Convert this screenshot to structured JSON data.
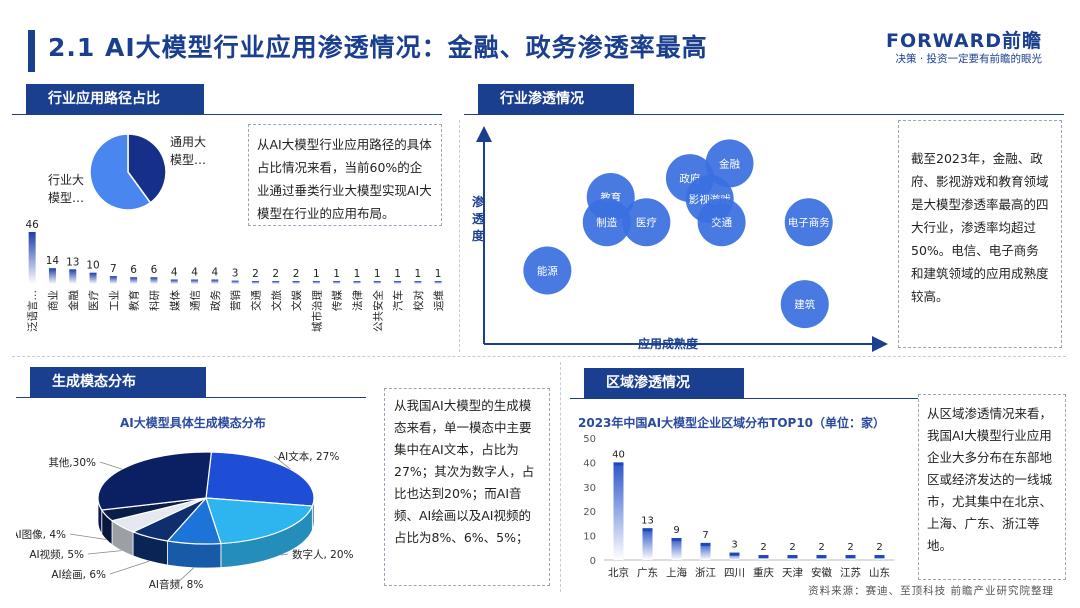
{
  "header": {
    "title": "2.1 AI大模型行业应用渗透情况：金融、政务渗透率最高",
    "logo": "FORWARD前瞻",
    "tagline": "决策 · 投资一定要有前瞻的眼光"
  },
  "sections": {
    "path_share": "行业应用路径占比",
    "penetration": "行业渗透情况",
    "modality": "生成模态分布",
    "region": "区域渗透情况"
  },
  "notes": {
    "path_share": "从AI大模型行业应用路径的具体占比情况来看，当前60%的企业通过垂类行业大模型实现AI大模型在行业的应用布局。",
    "penetration": "截至2023年，金融、政府、影视游戏和教育领域是大模型渗透率最高的四大行业，渗透率均超过50%。电信、电子商务和建筑领域的应用成熟度较高。",
    "modality": "从我国AI大模型的生成模态来看，单一模态中主要集中在AI文本，占比为27%；其次为数字人，占比也达到20%；而AI音频、AI绘画以及AI视频的占比为8%、6%、5%；",
    "region": "从区域渗透情况来看，我国AI大模型行业应用企业大多分布在东部地区或经济发达的一线城市，尤其集中在北京、上海、广东、浙江等地。"
  },
  "source": "资料来源：赛迪、至顶科技 前瞻产业研究院整理",
  "colors": {
    "primary": "#1b3f8f",
    "bubble": "#3a6fe0",
    "bar": "#2b56c9",
    "light": "#29b6f0"
  },
  "chart_data": [
    {
      "id": "path_pie",
      "type": "pie",
      "slices": [
        {
          "label": "通用大模型…",
          "value": 40,
          "color": "#16308a"
        },
        {
          "label": "行业大模型…",
          "value": 60,
          "color": "#4a86ef"
        }
      ]
    },
    {
      "id": "industry_bar",
      "type": "bar",
      "categories": [
        "泛语言…",
        "商业",
        "金融",
        "医疗",
        "工业",
        "教育",
        "科研",
        "媒体",
        "通信",
        "政务",
        "营销",
        "交通",
        "文旅",
        "文娱",
        "城市治理",
        "传媒",
        "法律",
        "公共安全",
        "汽车",
        "校对",
        "运维"
      ],
      "values": [
        46,
        14,
        13,
        10,
        7,
        6,
        6,
        4,
        4,
        4,
        3,
        2,
        2,
        2,
        1,
        1,
        1,
        1,
        1,
        1,
        1
      ],
      "ylim": [
        0,
        46
      ]
    },
    {
      "id": "penetration_bubble",
      "type": "scatter",
      "xlabel": "应用成熟度",
      "ylabel": "渗透度",
      "points": [
        {
          "label": "金融",
          "x": 0.62,
          "y": 0.86
        },
        {
          "label": "政府",
          "x": 0.52,
          "y": 0.79
        },
        {
          "label": "影视游戏",
          "x": 0.57,
          "y": 0.69
        },
        {
          "label": "教育",
          "x": 0.32,
          "y": 0.7
        },
        {
          "label": "制造",
          "x": 0.31,
          "y": 0.58
        },
        {
          "label": "医疗",
          "x": 0.41,
          "y": 0.58
        },
        {
          "label": "交通",
          "x": 0.6,
          "y": 0.58
        },
        {
          "label": "电子商务",
          "x": 0.82,
          "y": 0.58
        },
        {
          "label": "能源",
          "x": 0.16,
          "y": 0.35
        },
        {
          "label": "建筑",
          "x": 0.81,
          "y": 0.19
        }
      ]
    },
    {
      "id": "modality_pie",
      "type": "pie",
      "title": "AI大模型具体生成模态分布",
      "slices": [
        {
          "label": "AI文本, 27%",
          "value": 27,
          "color": "#1f4ed6"
        },
        {
          "label": "数字人, 20%",
          "value": 20,
          "color": "#2eb5ef"
        },
        {
          "label": "AI音频, 8%",
          "value": 8,
          "color": "#1c74d8"
        },
        {
          "label": "AI绘画, 6%",
          "value": 6,
          "color": "#0e2e6e"
        },
        {
          "label": "AI视频, 5%",
          "value": 5,
          "color": "#e6e8ef"
        },
        {
          "label": "AI图像, 4%",
          "value": 4,
          "color": "#0a1e4a"
        },
        {
          "label": "其他,30%",
          "value": 30,
          "color": "#0b1f63"
        }
      ]
    },
    {
      "id": "region_bar",
      "type": "bar",
      "title": "2023年中国AI大模型企业区域分布TOP10（单位：家）",
      "categories": [
        "北京",
        "广东",
        "上海",
        "浙江",
        "四川",
        "重庆",
        "天津",
        "安徽",
        "江苏",
        "山东"
      ],
      "values": [
        40,
        13,
        9,
        7,
        3,
        2,
        2,
        2,
        2,
        2
      ],
      "ylim": [
        0,
        50
      ],
      "yticks": [
        0,
        10,
        20,
        30,
        40,
        50
      ]
    }
  ]
}
